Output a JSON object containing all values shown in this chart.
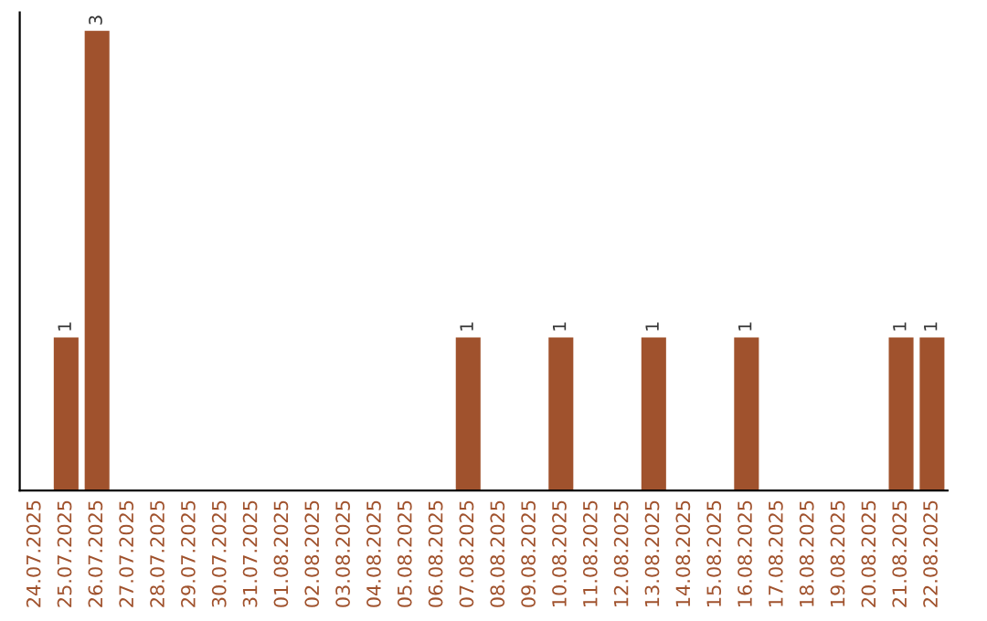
{
  "chart_data": {
    "type": "bar",
    "categories": [
      "24.07.2025",
      "25.07.2025",
      "26.07.2025",
      "27.07.2025",
      "28.07.2025",
      "29.07.2025",
      "30.07.2025",
      "31.07.2025",
      "01.08.2025",
      "02.08.2025",
      "03.08.2025",
      "04.08.2025",
      "05.08.2025",
      "06.08.2025",
      "07.08.2025",
      "08.08.2025",
      "09.08.2025",
      "10.08.2025",
      "11.08.2025",
      "12.08.2025",
      "13.08.2025",
      "14.08.2025",
      "15.08.2025",
      "16.08.2025",
      "17.08.2025",
      "18.08.2025",
      "19.08.2025",
      "20.08.2025",
      "21.08.2025",
      "22.08.2025"
    ],
    "values": [
      0,
      1,
      3,
      0,
      0,
      0,
      0,
      0,
      0,
      0,
      0,
      0,
      0,
      0,
      1,
      0,
      0,
      1,
      0,
      0,
      1,
      0,
      0,
      1,
      0,
      0,
      0,
      0,
      1,
      1
    ],
    "value_labels": [
      null,
      "1",
      "3",
      null,
      null,
      null,
      null,
      null,
      null,
      null,
      null,
      null,
      null,
      null,
      "1",
      null,
      null,
      "1",
      null,
      null,
      "1",
      null,
      null,
      "1",
      null,
      null,
      null,
      null,
      "1",
      "1"
    ],
    "color": "#a0522d",
    "tick_labels": "x",
    "grid": false,
    "legend": false
  }
}
